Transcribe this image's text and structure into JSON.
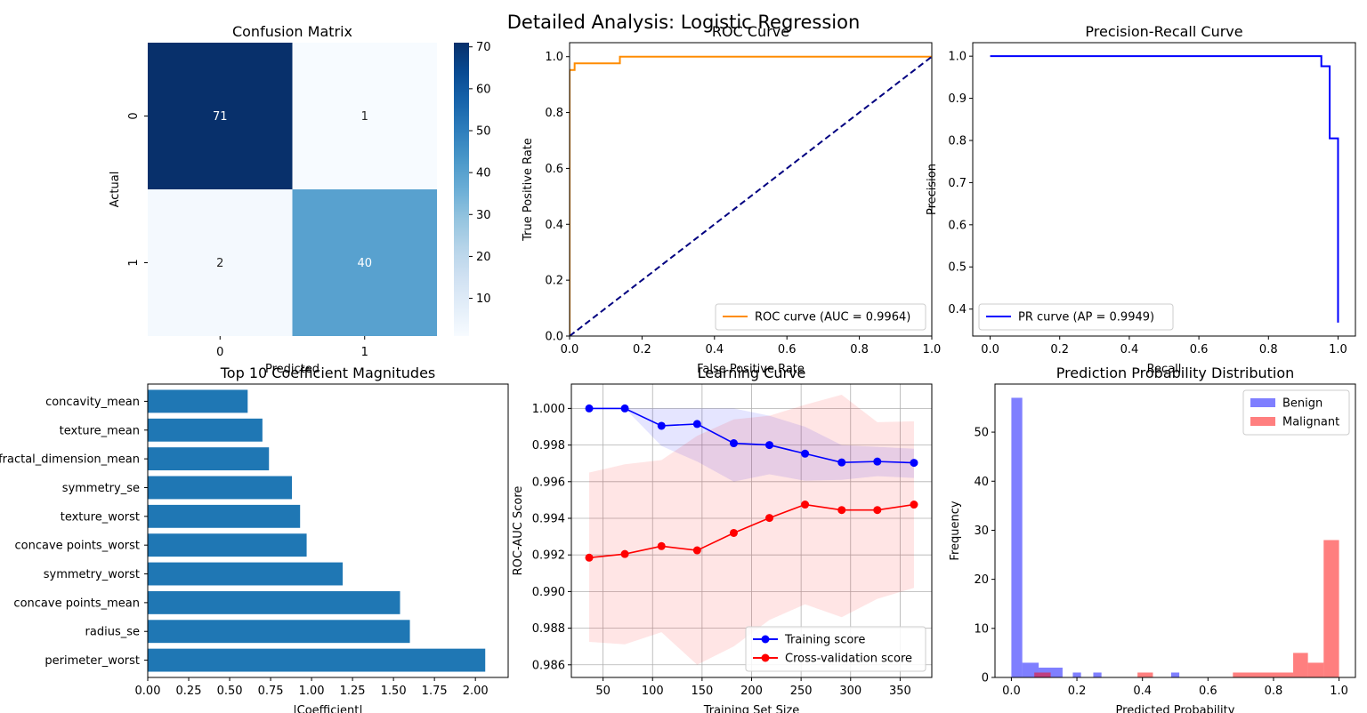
{
  "figure": {
    "title": "Detailed Analysis: Logistic Regression"
  },
  "chart_data": [
    {
      "id": "confusion",
      "type": "heatmap",
      "title": "Confusion Matrix",
      "xlabel": "Predicted",
      "ylabel": "Actual",
      "x_categories": [
        "0",
        "1"
      ],
      "y_categories": [
        "0",
        "1"
      ],
      "values": [
        [
          71,
          1
        ],
        [
          2,
          40
        ]
      ],
      "colormap": "Blues",
      "colorbar_ticks": [
        10,
        20,
        30,
        40,
        50,
        60,
        70
      ]
    },
    {
      "id": "roc",
      "type": "line",
      "title": "ROC Curve",
      "xlabel": "False Positive Rate",
      "ylabel": "True Positive Rate",
      "xlim": [
        0,
        1
      ],
      "ylim": [
        0,
        1.05
      ],
      "xticks": [
        "0.0",
        "0.2",
        "0.4",
        "0.6",
        "0.8",
        "1.0"
      ],
      "yticks": [
        "0.0",
        "0.2",
        "0.4",
        "0.6",
        "0.8",
        "1.0"
      ],
      "legend_position": "lower-right",
      "series": [
        {
          "name": "ROC curve (AUC = 0.9964)",
          "color": "#ff8c00",
          "x": [
            0,
            0,
            0.0139,
            0.0139,
            0.1389,
            0.1389,
            1.0
          ],
          "y": [
            0,
            0.952,
            0.952,
            0.976,
            0.976,
            1.0,
            1.0
          ]
        },
        {
          "color": "#000080",
          "style": "dashed",
          "x": [
            0,
            1
          ],
          "y": [
            0,
            1
          ]
        }
      ]
    },
    {
      "id": "pr",
      "type": "line",
      "title": "Precision-Recall Curve",
      "xlabel": "Recall",
      "ylabel": "Precision",
      "xlim": [
        -0.05,
        1.05
      ],
      "ylim": [
        0.336,
        1.032
      ],
      "xticks": [
        "0.0",
        "0.2",
        "0.4",
        "0.6",
        "0.8",
        "1.0"
      ],
      "yticks": [
        "0.4",
        "0.5",
        "0.6",
        "0.7",
        "0.8",
        "0.9",
        "1.0"
      ],
      "legend_position": "lower-left",
      "series": [
        {
          "name": "PR curve (AP = 0.9949)",
          "color": "#0000ff",
          "x": [
            0,
            0.952,
            0.952,
            0.976,
            0.976,
            1.0,
            1.0
          ],
          "y": [
            1.0,
            1.0,
            0.976,
            0.976,
            0.805,
            0.805,
            0.368
          ]
        }
      ]
    },
    {
      "id": "coef",
      "type": "bar",
      "orientation": "horizontal",
      "title": "Top 10 Coefficient Magnitudes",
      "xlabel": "|Coefficient|",
      "xlim": [
        0,
        2.2
      ],
      "xticks": [
        "0.00",
        "0.25",
        "0.50",
        "0.75",
        "1.00",
        "1.25",
        "1.50",
        "1.75",
        "2.00"
      ],
      "color": "#1f77b4",
      "categories": [
        "perimeter_worst",
        "radius_se",
        "concave points_mean",
        "symmetry_worst",
        "concave points_worst",
        "texture_worst",
        "symmetry_se",
        "fractal_dimension_mean",
        "texture_mean",
        "concavity_mean"
      ],
      "values": [
        2.06,
        1.6,
        1.54,
        1.19,
        0.97,
        0.93,
        0.88,
        0.74,
        0.7,
        0.61
      ]
    },
    {
      "id": "learning",
      "type": "line",
      "title": "Learning Curve",
      "xlabel": "Training Set Size",
      "ylabel": "ROC-AUC Score",
      "xlim": [
        18,
        382
      ],
      "ylim": [
        0.98531,
        1.00133
      ],
      "xticks": [
        "50",
        "100",
        "150",
        "200",
        "250",
        "300",
        "350"
      ],
      "yticks": [
        "0.986",
        "0.988",
        "0.990",
        "0.992",
        "0.994",
        "0.996",
        "0.998",
        "1.000"
      ],
      "grid": true,
      "legend_position": "lower-right",
      "x": [
        36,
        72,
        109,
        145,
        182,
        218,
        254,
        291,
        327,
        364
      ],
      "series": [
        {
          "name": "Training score",
          "color": "#0000ff",
          "values": [
            1.0,
            1.0,
            0.99905,
            0.99915,
            0.9981,
            0.998,
            0.99753,
            0.99705,
            0.9971,
            0.99703
          ],
          "band_low": [
            1.0,
            1.0,
            0.99795,
            0.9971,
            0.996,
            0.9964,
            0.99605,
            0.9961,
            0.9963,
            0.9962
          ],
          "band_high": [
            1.0,
            1.0,
            1.0,
            1.0,
            1.0,
            0.9996,
            0.999,
            0.998,
            0.9979,
            0.9978
          ]
        },
        {
          "name": "Cross-validation score",
          "color": "#ff0000",
          "values": [
            0.99185,
            0.99205,
            0.99248,
            0.99225,
            0.9932,
            0.99402,
            0.99475,
            0.99445,
            0.99445,
            0.99475
          ],
          "band_low": [
            0.98725,
            0.98712,
            0.98778,
            0.986,
            0.987,
            0.98845,
            0.9893,
            0.9886,
            0.9896,
            0.9902
          ],
          "band_high": [
            0.9965,
            0.99695,
            0.99718,
            0.9985,
            0.9994,
            0.9996,
            1.0002,
            1.00075,
            0.99925,
            0.9993
          ]
        }
      ]
    },
    {
      "id": "hist",
      "type": "bar",
      "title": "Prediction Probability Distribution",
      "xlabel": "Predicted Probability",
      "ylabel": "Frequency",
      "xlim": [
        -0.05,
        1.05
      ],
      "ylim": [
        0,
        59.8
      ],
      "xticks": [
        "0.0",
        "0.2",
        "0.4",
        "0.6",
        "0.8",
        "1.0"
      ],
      "yticks": [
        "0",
        "10",
        "20",
        "30",
        "40",
        "50"
      ],
      "legend_position": "top-right",
      "series": [
        {
          "name": "Benign",
          "color": "#0000ff",
          "bins": [
            [
              0.0,
              0.0333,
              57
            ],
            [
              0.0333,
              0.0833,
              3
            ],
            [
              0.0833,
              0.1562,
              2
            ],
            [
              0.1875,
              0.2125,
              1
            ],
            [
              0.25,
              0.275,
              1
            ],
            [
              0.4875,
              0.5125,
              1
            ]
          ]
        },
        {
          "name": "Malignant",
          "color": "#ff0000",
          "bins": [
            [
              0.07,
              0.12,
              1
            ],
            [
              0.385,
              0.432,
              1
            ],
            [
              0.676,
              0.86,
              1
            ],
            [
              0.86,
              0.905,
              5
            ],
            [
              0.905,
              0.953,
              3
            ],
            [
              0.953,
              1.0,
              28
            ]
          ]
        }
      ]
    }
  ]
}
